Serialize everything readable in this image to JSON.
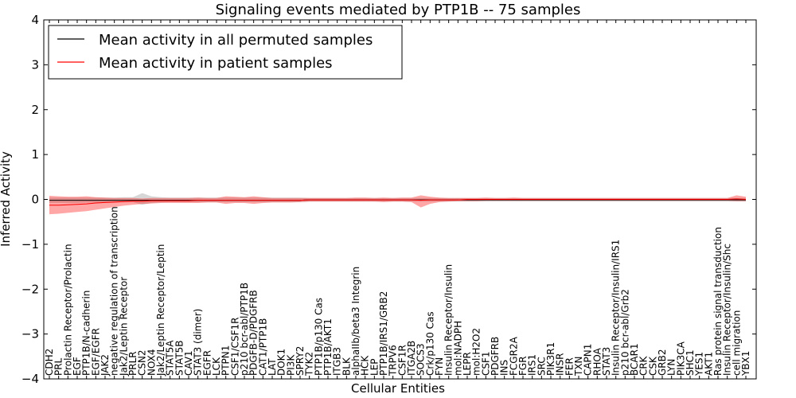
{
  "chart_data": {
    "type": "line",
    "title": "Signaling events mediated by PTP1B -- 75 samples",
    "xlabel": "Cellular Entities",
    "ylabel": "Inferred Activity",
    "ylim": [
      -4,
      4
    ],
    "yticks": [
      -4,
      -3,
      -2,
      -1,
      0,
      1,
      2,
      3,
      4
    ],
    "ytick_labels": [
      "−4",
      "−3",
      "−2",
      "−1",
      "0",
      "1",
      "2",
      "3",
      "4"
    ],
    "grid": false,
    "legend": {
      "placement": "top-left",
      "entries": [
        {
          "label": "Mean activity in all permuted samples",
          "color": "#000000"
        },
        {
          "label": "Mean activity in patient samples",
          "color": "#ff0000"
        }
      ]
    },
    "categories": [
      "CDH2",
      "PRL",
      "Prolactin Receptor/Prolactin",
      "EGF",
      "PTP1B/N-cadherin",
      "EGF/EGFR",
      "JAK2",
      "negative regulation of transcription",
      "Jak2/Leptin Receptor",
      "PRLR",
      "CSN2",
      "NOX4",
      "Jak2/Leptin Receptor/Leptin",
      "STAT5A",
      "STAT5B",
      "CAV1",
      "STAT3 (dimer)",
      "EGFR",
      "LCK",
      "PTPN1",
      "CSF1/CSF1R",
      "p210 bcr-abl/PTP1B",
      "PDGFB-D/PDGFRB",
      "CAT1/PTP1B",
      "LAT",
      "DOK1",
      "PI3K",
      "SPRY2",
      "TYK2",
      "PTP1B/p130 Cas",
      "PTP1B/AKT1",
      "ITGB3",
      "BLK",
      "alphaIIb/beta3 Integrin",
      "HCK",
      "LEP",
      "PTP1B/IRS1/GRB2",
      "TRPV6",
      "CSF1R",
      "ITGA2B",
      "SOCS3",
      "Crk/p130 Cas",
      "FYN",
      "Insulin Receptor/Insulin",
      "mol:NADPH",
      "LEPR",
      "mol:H2O2",
      "CSF1",
      "PDGFRB",
      "INS",
      "FCGR2A",
      "FGR",
      "IRS1",
      "SRC",
      "PIK3R1",
      "INSR",
      "FER",
      "TXN",
      "CAPN1",
      "RHOA",
      "STAT3",
      "Insulin Receptor/Insulin/IRS1",
      "p210 bcr-abl/Grb2",
      "BCAR1",
      "CRK",
      "CSK",
      "GRB2",
      "LYN",
      "PIK3CA",
      "SHC1",
      "YES1",
      "AKT1",
      "Ras protein signal transduction",
      "Insulin Receptor/Insulin/Shc",
      "cell migration",
      "YBX1"
    ],
    "series": [
      {
        "name": "Mean activity in all permuted samples",
        "color": "#000000",
        "values": [
          -0.02,
          -0.02,
          -0.02,
          -0.02,
          -0.02,
          -0.02,
          -0.02,
          -0.02,
          -0.02,
          -0.02,
          -0.02,
          -0.02,
          -0.02,
          -0.02,
          -0.02,
          -0.02,
          -0.02,
          -0.02,
          -0.02,
          -0.02,
          -0.02,
          -0.02,
          -0.02,
          -0.02,
          -0.02,
          -0.02,
          -0.02,
          -0.02,
          -0.01,
          -0.01,
          -0.01,
          -0.01,
          -0.01,
          -0.01,
          -0.01,
          -0.01,
          -0.01,
          -0.01,
          -0.01,
          -0.01,
          -0.01,
          -0.01,
          -0.01,
          -0.01,
          -0.01,
          -0.01,
          -0.01,
          -0.01,
          -0.01,
          -0.01,
          -0.01,
          -0.01,
          -0.01,
          -0.01,
          -0.01,
          -0.01,
          -0.01,
          -0.01,
          -0.01,
          -0.01,
          -0.01,
          -0.01,
          -0.01,
          -0.01,
          -0.01,
          -0.01,
          -0.01,
          -0.01,
          -0.01,
          -0.01,
          -0.01,
          -0.01,
          -0.01,
          -0.01,
          -0.01,
          -0.01
        ],
        "band_lower": [
          -0.08,
          -0.08,
          -0.08,
          -0.08,
          -0.07,
          -0.07,
          -0.07,
          -0.07,
          -0.06,
          -0.06,
          -0.12,
          -0.08,
          -0.07,
          -0.06,
          -0.06,
          -0.06,
          -0.06,
          -0.06,
          -0.06,
          -0.06,
          -0.06,
          -0.06,
          -0.06,
          -0.06,
          -0.06,
          -0.06,
          -0.06,
          -0.06,
          -0.05,
          -0.05,
          -0.05,
          -0.05,
          -0.05,
          -0.05,
          -0.05,
          -0.05,
          -0.05,
          -0.05,
          -0.05,
          -0.05,
          -0.05,
          -0.05,
          -0.05,
          -0.05,
          -0.05,
          -0.05,
          -0.05,
          -0.05,
          -0.05,
          -0.05,
          -0.05,
          -0.05,
          -0.05,
          -0.05,
          -0.05,
          -0.05,
          -0.05,
          -0.05,
          -0.05,
          -0.05,
          -0.05,
          -0.05,
          -0.05,
          -0.05,
          -0.05,
          -0.05,
          -0.05,
          -0.05,
          -0.05,
          -0.05,
          -0.05,
          -0.05,
          -0.05,
          -0.05,
          -0.05,
          -0.05
        ],
        "band_upper": [
          0.04,
          0.04,
          0.04,
          0.04,
          0.04,
          0.04,
          0.04,
          0.04,
          0.05,
          0.05,
          0.14,
          0.07,
          0.05,
          0.04,
          0.04,
          0.04,
          0.04,
          0.04,
          0.04,
          0.04,
          0.04,
          0.04,
          0.04,
          0.04,
          0.04,
          0.04,
          0.04,
          0.04,
          0.03,
          0.03,
          0.03,
          0.03,
          0.03,
          0.03,
          0.03,
          0.03,
          0.03,
          0.03,
          0.03,
          0.03,
          0.03,
          0.03,
          0.03,
          0.03,
          0.03,
          0.03,
          0.03,
          0.03,
          0.03,
          0.03,
          0.03,
          0.03,
          0.03,
          0.03,
          0.03,
          0.03,
          0.03,
          0.03,
          0.03,
          0.03,
          0.03,
          0.03,
          0.03,
          0.03,
          0.03,
          0.03,
          0.03,
          0.03,
          0.03,
          0.03,
          0.03,
          0.03,
          0.03,
          0.03,
          0.03,
          0.03
        ]
      },
      {
        "name": "Mean activity in patient samples",
        "color": "#ff0000",
        "values": [
          -0.13,
          -0.13,
          -0.12,
          -0.11,
          -0.1,
          -0.08,
          -0.07,
          -0.06,
          -0.05,
          -0.04,
          -0.04,
          -0.03,
          -0.03,
          -0.03,
          -0.03,
          -0.03,
          -0.02,
          -0.02,
          -0.02,
          -0.02,
          -0.02,
          -0.02,
          -0.02,
          -0.02,
          -0.02,
          -0.02,
          -0.02,
          -0.02,
          -0.01,
          -0.01,
          -0.01,
          -0.01,
          -0.01,
          -0.01,
          -0.01,
          -0.01,
          -0.01,
          -0.01,
          -0.01,
          -0.01,
          -0.02,
          -0.01,
          -0.01,
          -0.01,
          -0.01,
          0.0,
          0.0,
          0.0,
          0.0,
          0.0,
          0.0,
          0.0,
          0.0,
          0.0,
          0.0,
          0.0,
          0.0,
          0.0,
          0.0,
          0.0,
          0.0,
          0.0,
          0.0,
          0.0,
          0.0,
          0.0,
          0.0,
          0.0,
          0.0,
          0.0,
          0.0,
          0.0,
          0.0,
          0.0,
          0.01,
          0.0
        ],
        "band_lower": [
          -0.33,
          -0.32,
          -0.3,
          -0.28,
          -0.26,
          -0.23,
          -0.2,
          -0.17,
          -0.14,
          -0.12,
          -0.1,
          -0.09,
          -0.08,
          -0.08,
          -0.08,
          -0.08,
          -0.08,
          -0.07,
          -0.07,
          -0.1,
          -0.08,
          -0.08,
          -0.1,
          -0.08,
          -0.07,
          -0.07,
          -0.07,
          -0.06,
          -0.05,
          -0.05,
          -0.05,
          -0.05,
          -0.05,
          -0.05,
          -0.05,
          -0.05,
          -0.06,
          -0.05,
          -0.05,
          -0.06,
          -0.18,
          -0.1,
          -0.06,
          -0.05,
          -0.04,
          -0.04,
          -0.04,
          -0.03,
          -0.03,
          -0.03,
          -0.03,
          -0.03,
          -0.03,
          -0.03,
          -0.03,
          -0.03,
          -0.03,
          -0.03,
          -0.03,
          -0.03,
          -0.03,
          -0.03,
          -0.03,
          -0.03,
          -0.03,
          -0.03,
          -0.03,
          -0.03,
          -0.03,
          -0.03,
          -0.03,
          -0.03,
          -0.03,
          -0.03,
          -0.04,
          -0.04
        ],
        "band_upper": [
          0.08,
          0.07,
          0.06,
          0.06,
          0.07,
          0.05,
          0.04,
          0.03,
          0.03,
          0.03,
          0.02,
          0.03,
          0.03,
          0.03,
          0.03,
          0.03,
          0.04,
          0.03,
          0.03,
          0.07,
          0.06,
          0.05,
          0.07,
          0.05,
          0.03,
          0.03,
          0.03,
          0.03,
          0.03,
          0.03,
          0.03,
          0.03,
          0.03,
          0.04,
          0.04,
          0.03,
          0.04,
          0.03,
          0.04,
          0.04,
          0.09,
          0.06,
          0.04,
          0.03,
          0.03,
          0.03,
          0.03,
          0.04,
          0.03,
          0.03,
          0.04,
          0.03,
          0.03,
          0.03,
          0.03,
          0.03,
          0.03,
          0.03,
          0.03,
          0.03,
          0.03,
          0.03,
          0.03,
          0.03,
          0.03,
          0.03,
          0.03,
          0.03,
          0.03,
          0.03,
          0.03,
          0.03,
          0.03,
          0.03,
          0.09,
          0.06
        ]
      }
    ]
  }
}
